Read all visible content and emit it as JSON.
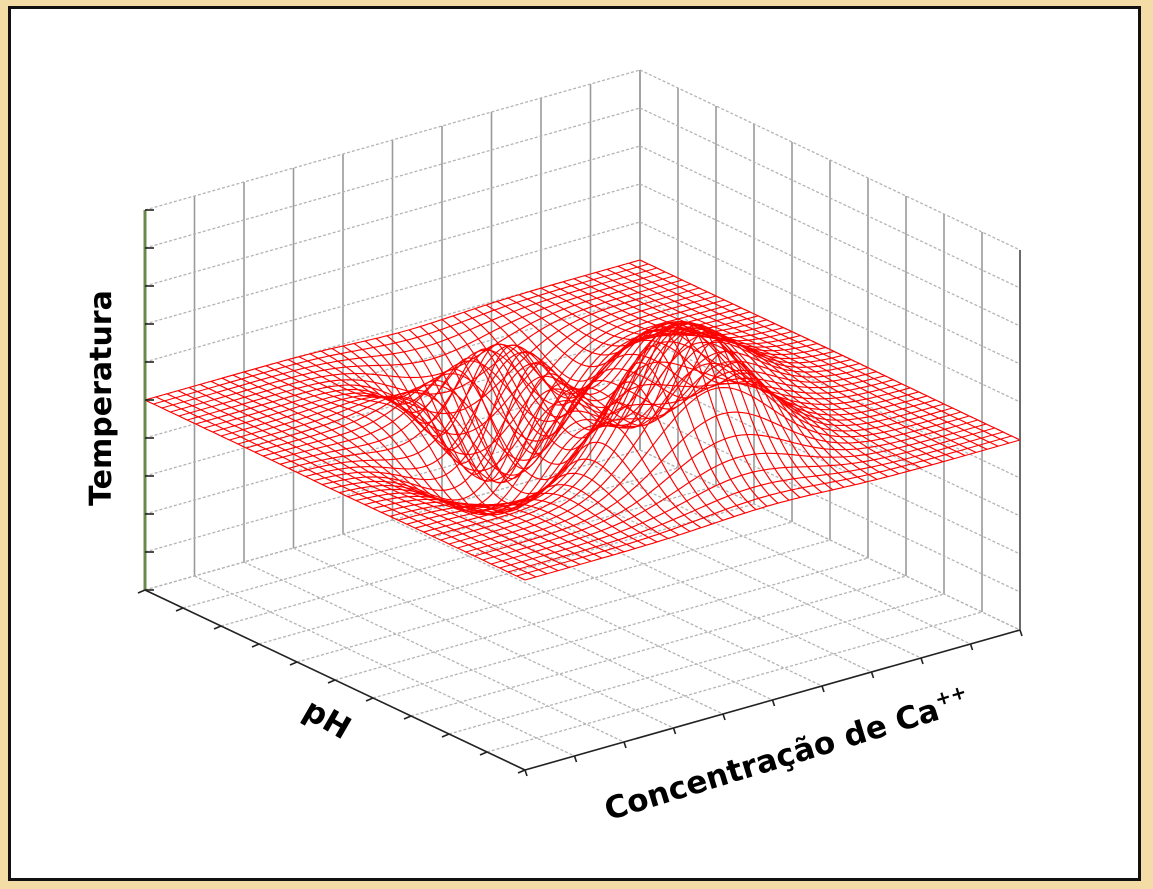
{
  "chart_data": {
    "type": "surface",
    "xlabel": "pH",
    "ylabel_main": "Concentração de Ca",
    "ylabel_superscript": "++",
    "zlabel": "Temperatura",
    "grid": true,
    "surface_color": "#ff0000",
    "z_axis_color": "#6a8a4a",
    "surface_shape": "peaks",
    "mesh_lines": 45
  }
}
